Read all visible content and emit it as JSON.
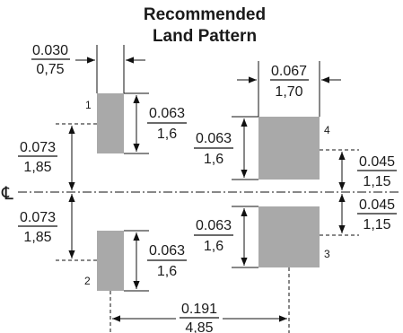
{
  "title": {
    "line1": "Recommended",
    "line2": "Land Pattern"
  },
  "centerline_symbol": "℄",
  "pads": {
    "pad1": {
      "pin": "1"
    },
    "pad2": {
      "pin": "2"
    },
    "pad3": {
      "pin": "3"
    },
    "pad4": {
      "pin": "4"
    }
  },
  "dimensions": {
    "small_pad_width": {
      "inch": "0.030",
      "mm": "0,75"
    },
    "large_pad_width": {
      "inch": "0.067",
      "mm": "1,70"
    },
    "pad1_height": {
      "inch": "0.063",
      "mm": "1,6"
    },
    "pad2_height": {
      "inch": "0.063",
      "mm": "1,6"
    },
    "pad4_height": {
      "inch": "0.063",
      "mm": "1,6"
    },
    "pad3_height": {
      "inch": "0.063",
      "mm": "1,6"
    },
    "upper_offset": {
      "inch": "0.073",
      "mm": "1,85"
    },
    "lower_offset": {
      "inch": "0.073",
      "mm": "1,85"
    },
    "pad4_offset": {
      "inch": "0.045",
      "mm": "1,15"
    },
    "pad3_offset": {
      "inch": "0.045",
      "mm": "1,15"
    },
    "pitch": {
      "inch": "0.191",
      "mm": "4,85"
    }
  },
  "colors": {
    "pad": "#a9a9a9",
    "line": "#111111"
  }
}
